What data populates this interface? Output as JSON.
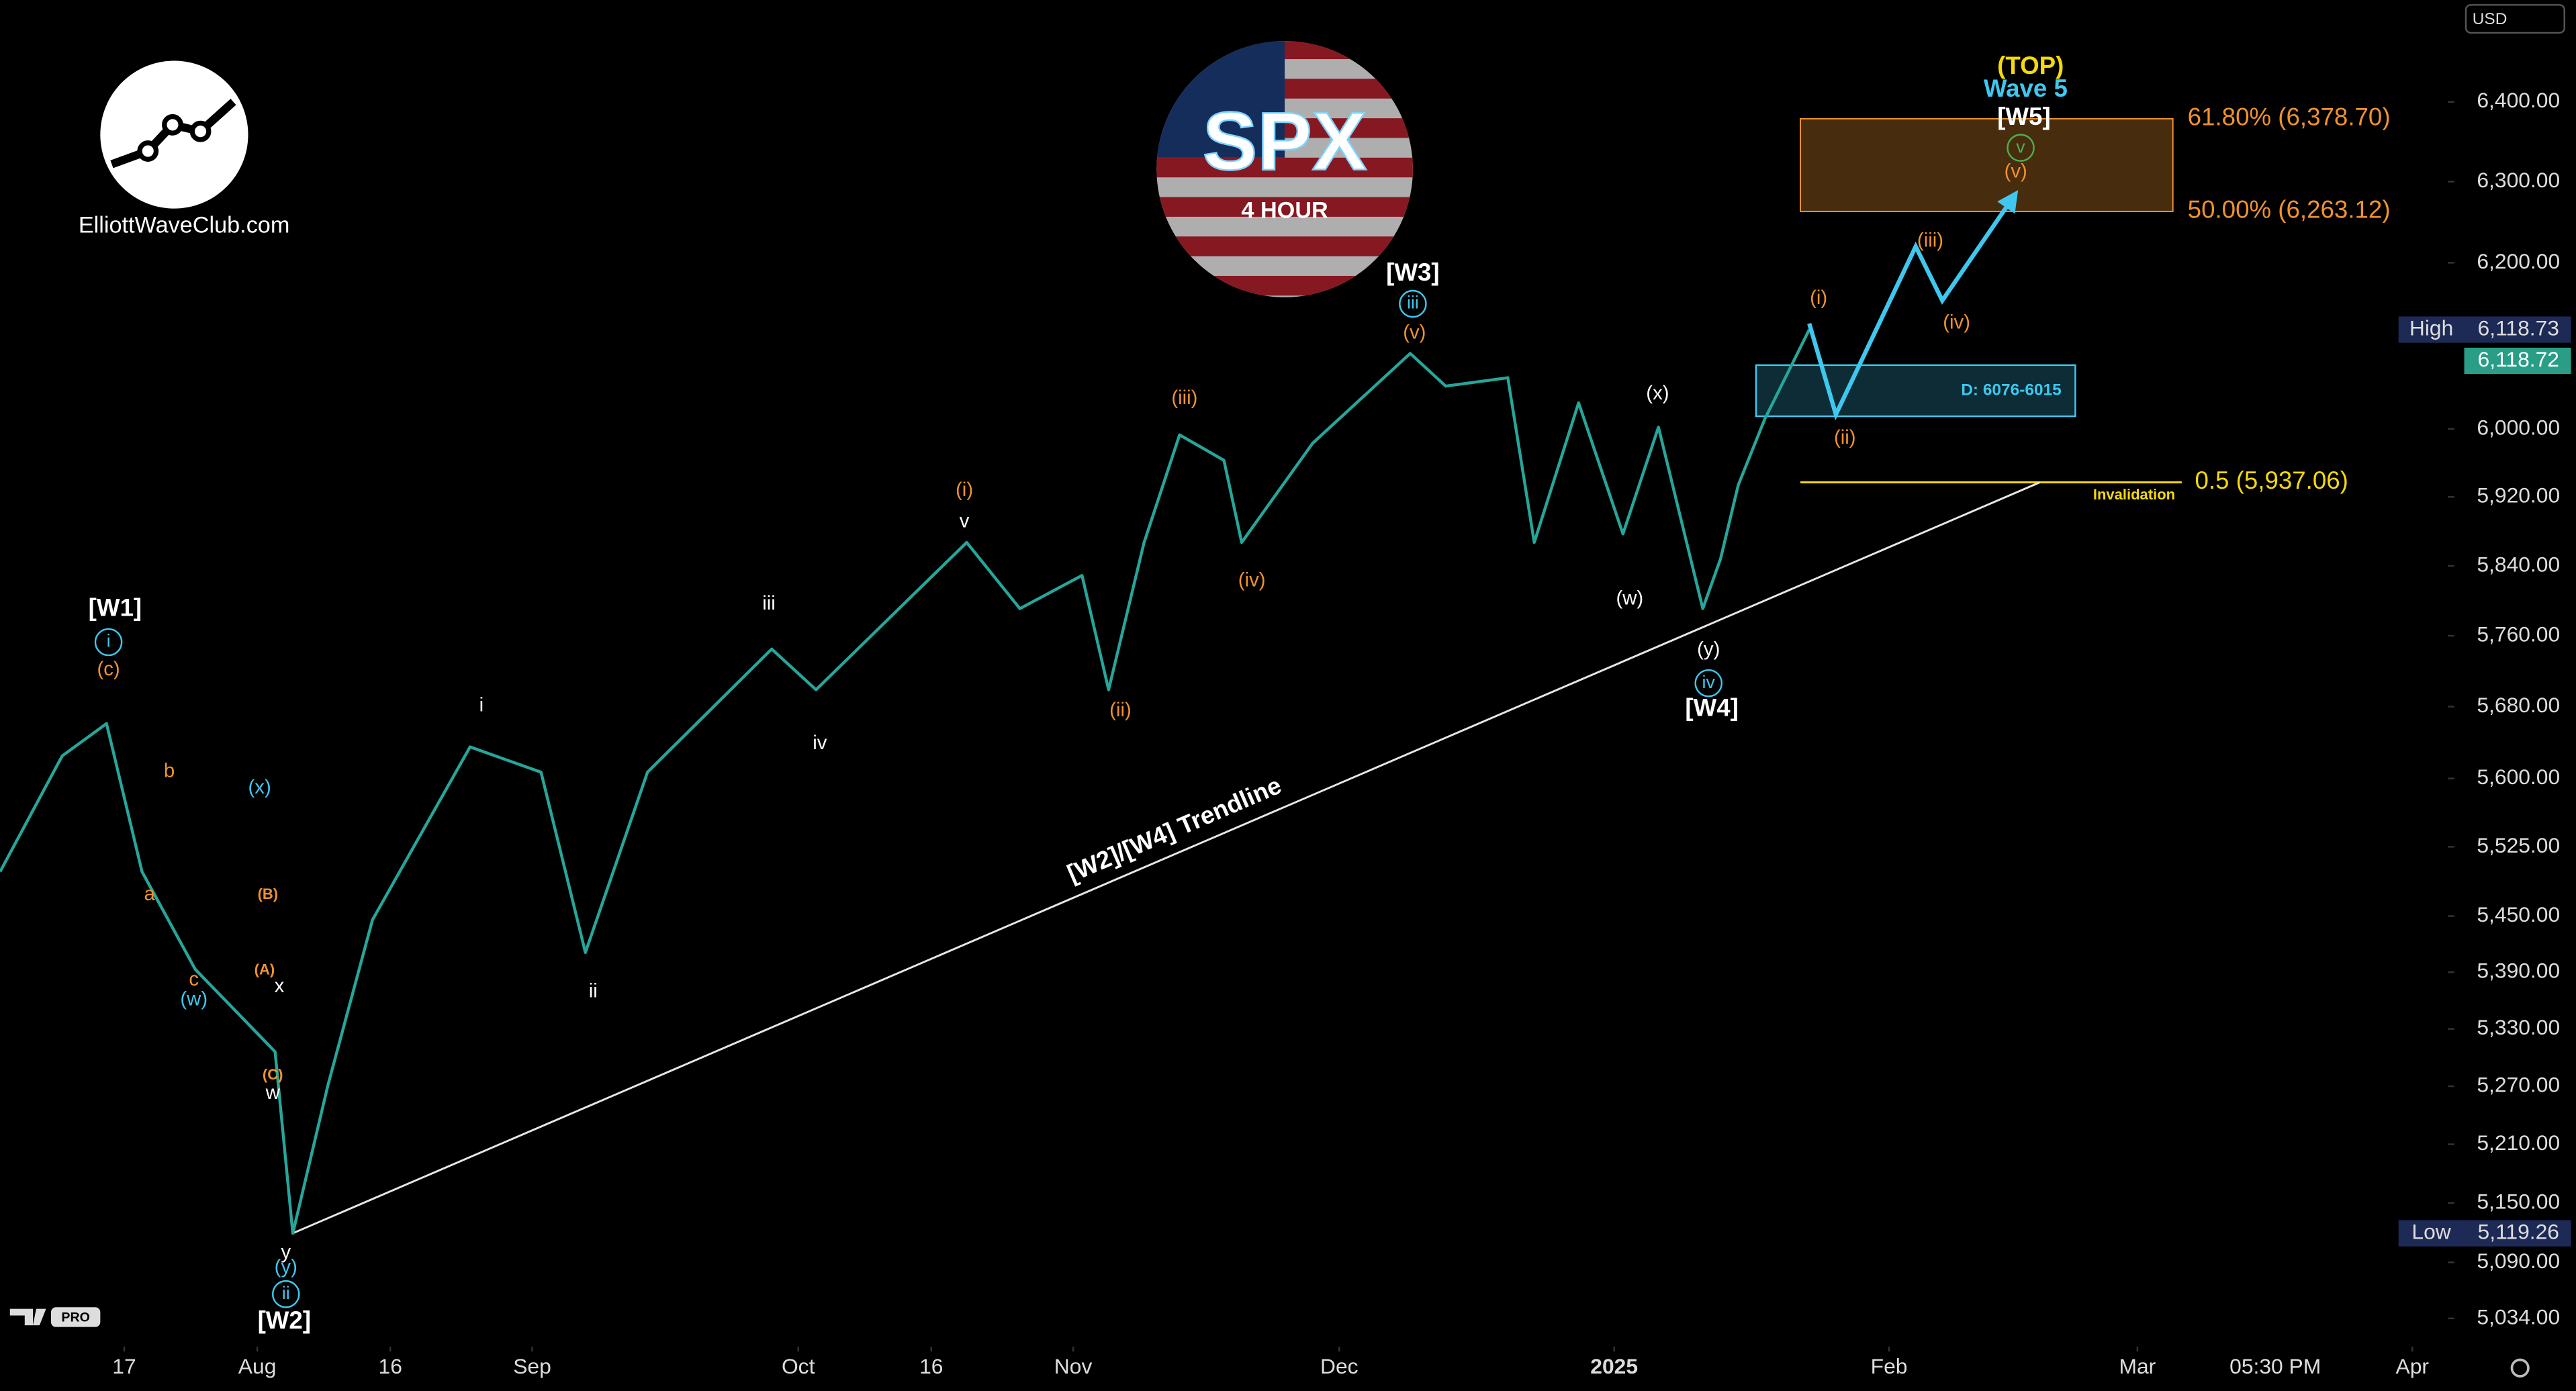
{
  "chart_data": {
    "type": "line",
    "title": "SPX",
    "subtitle": "4 HOUR",
    "source": "ElliottWaveClub.com",
    "badge": "PRO",
    "currency": "USD",
    "x": [
      "2024-07-03",
      "2024-07-10",
      "2024-07-15",
      "2024-07-19",
      "2024-07-25",
      "2024-08-03",
      "2024-08-05",
      "2024-08-09",
      "2024-08-14",
      "2024-08-25",
      "2024-09-02",
      "2024-09-07",
      "2024-09-14",
      "2024-09-28",
      "2024-10-03",
      "2024-10-20",
      "2024-10-26",
      "2024-11-02",
      "2024-11-05",
      "2024-11-09",
      "2024-11-13",
      "2024-11-18",
      "2024-11-20",
      "2024-11-28",
      "2024-12-09",
      "2024-12-13",
      "2024-12-20",
      "2024-12-23",
      "2024-12-28",
      "2025-01-02",
      "2025-01-06",
      "2025-01-11",
      "2025-01-13",
      "2025-01-15",
      "2025-01-18",
      "2025-01-23"
    ],
    "series": [
      {
        "color": "#26a69a",
        "values": [
          5498,
          5625,
          5661,
          5498,
          5393,
          5306,
          5119.26,
          5272,
          5446,
          5635,
          5607,
          5411,
          5607,
          5745,
          5699,
          5867,
          5791,
          5829,
          5699,
          5867,
          5993,
          5963,
          5867,
          5983,
          6090,
          6051,
          6061,
          5867,
          6031,
          5877,
          6002,
          5791,
          5848,
          5934,
          6012,
          6118.72
        ]
      }
    ],
    "xlim": [
      "2024-07-03",
      "2025-04-05"
    ],
    "xticks": [
      {
        "value": "2024-07-17",
        "label": "17"
      },
      {
        "value": "2024-08-01",
        "label": "Aug"
      },
      {
        "value": "2024-08-16",
        "label": "16"
      },
      {
        "value": "2024-09-01",
        "label": "Sep"
      },
      {
        "value": "2024-10-01",
        "label": "Oct"
      },
      {
        "value": "2024-10-16",
        "label": "16"
      },
      {
        "value": "2024-11-01",
        "label": "Nov"
      },
      {
        "value": "2024-12-01",
        "label": "Dec"
      },
      {
        "value": "2025-01-01",
        "label": "2025"
      },
      {
        "value": "2025-02-01",
        "label": "Feb"
      },
      {
        "value": "2025-03-01",
        "label": "Mar"
      },
      {
        "value": "2025-04-01",
        "label": "Apr"
      }
    ],
    "ylim": [
      5006,
      6530
    ],
    "log_scale": true,
    "grid": false,
    "yticks": [
      {
        "value": 6400,
        "label": "6,400.00"
      },
      {
        "value": 6300,
        "label": "6,300.00"
      },
      {
        "value": 6200,
        "label": "6,200.00"
      },
      {
        "value": 6000,
        "label": "6,000.00"
      },
      {
        "value": 5920,
        "label": "5,920.00"
      },
      {
        "value": 5840,
        "label": "5,840.00"
      },
      {
        "value": 5760,
        "label": "5,760.00"
      },
      {
        "value": 5680,
        "label": "5,680.00"
      },
      {
        "value": 5600,
        "label": "5,600.00"
      },
      {
        "value": 5525,
        "label": "5,525.00"
      },
      {
        "value": 5450,
        "label": "5,450.00"
      },
      {
        "value": 5390,
        "label": "5,390.00"
      },
      {
        "value": 5330,
        "label": "5,330.00"
      },
      {
        "value": 5270,
        "label": "5,270.00"
      },
      {
        "value": 5210,
        "label": "5,210.00"
      },
      {
        "value": 5150,
        "label": "5,150.00"
      },
      {
        "value": 5090,
        "label": "5,090.00"
      },
      {
        "value": 5034,
        "label": "5,034.00"
      }
    ],
    "high": {
      "label": "High",
      "value": 6118.73,
      "value_label": "6,118.73"
    },
    "last_price": {
      "value": 6118.72,
      "value_label": "6,118.72"
    },
    "low": {
      "label": "Low",
      "value": 5119.26,
      "value_label": "5,119.26"
    },
    "cursor_time": "05:30 PM",
    "projection": {
      "x": [
        "2025-01-23",
        "2025-01-26",
        "2025-02-04",
        "2025-02-07",
        "2025-02-15"
      ],
      "values": [
        6126,
        6017,
        6220,
        6154,
        6281
      ],
      "color": "#3ec8f0"
    },
    "trendline": {
      "label": "[W2]/[W4] Trendline",
      "x": [
        "2024-08-05",
        "2025-02-18"
      ],
      "values": [
        5119.26,
        5937.06
      ],
      "color": "#e6e6e6"
    },
    "fib_zone": {
      "x": [
        "2025-01-22",
        "2025-03-05"
      ],
      "levels": [
        {
          "value": 6378.7,
          "label": "61.80% (6,378.70)"
        },
        {
          "value": 6263.12,
          "label": "50.00% (6,263.12)"
        }
      ],
      "color": "#f0922e"
    },
    "target_zone": {
      "label": "D: 6076-6015",
      "x": [
        "2025-01-17",
        "2025-02-22"
      ],
      "values": [
        6076,
        6015
      ],
      "color": "#3ec8f0"
    },
    "invalidation": {
      "label": "Invalidation",
      "value": 5937.06,
      "value_label": "0.5 (5,937.06)",
      "x": [
        "2025-01-22",
        "2025-03-06"
      ],
      "color": "#f5d90a"
    },
    "wave_labels": [
      "[W1]",
      "i",
      "(c)",
      "b",
      "a",
      "c",
      "(w)",
      "(x)",
      "(B)",
      "(A)",
      "x",
      "(C)",
      "w",
      "y",
      "(y)",
      "ii",
      "[W2]",
      "i",
      "ii",
      "iii",
      "iv",
      "(i)",
      "v",
      "(ii)",
      "(iii)",
      "(iv)",
      "[W3]",
      "iii",
      "(v)",
      "(x)",
      "(w)",
      "(y)",
      "iv",
      "[W4]",
      "(i)",
      "(ii)",
      "(iii)",
      "(iv)",
      "(TOP)",
      "Wave 5",
      "[W5]",
      "v",
      "(v)"
    ]
  }
}
